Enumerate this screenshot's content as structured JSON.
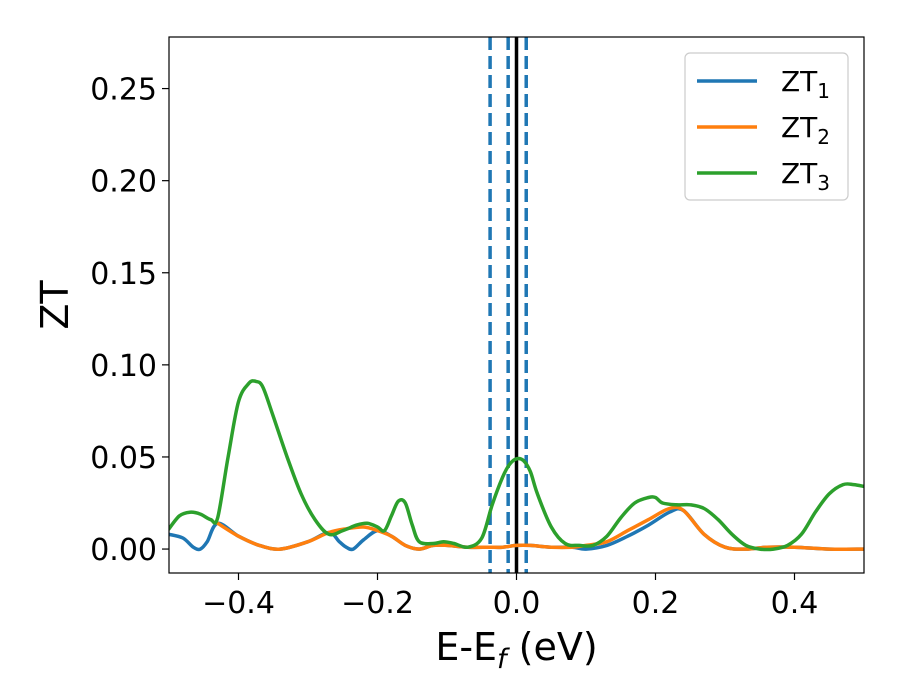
{
  "chart_data": {
    "type": "line",
    "xlabel": "E-E",
    "xlabel_sub": "f",
    "xlabel_unit": "(eV)",
    "ylabel": "ZT",
    "xlim": [
      -0.5,
      0.5
    ],
    "ylim": [
      -0.013,
      0.278
    ],
    "xticks": [
      -0.4,
      -0.2,
      0.0,
      0.2,
      0.4
    ],
    "xtick_labels": [
      "−0.4",
      "−0.2",
      "0.0",
      "0.2",
      "0.4"
    ],
    "yticks": [
      0.0,
      0.05,
      0.1,
      0.15,
      0.2,
      0.25
    ],
    "ytick_labels": [
      "0.00",
      "0.05",
      "0.10",
      "0.15",
      "0.20",
      "0.25"
    ],
    "grid": false,
    "legend_position": "top-right",
    "vlines": [
      {
        "x": -0.038,
        "style": "dashed",
        "color": "#1f77b4"
      },
      {
        "x": -0.012,
        "style": "dashed",
        "color": "#1f77b4"
      },
      {
        "x": 0.0,
        "style": "solid",
        "color": "#000000"
      },
      {
        "x": 0.014,
        "style": "dashed",
        "color": "#1f77b4"
      }
    ],
    "series": [
      {
        "name": "ZT",
        "sub": "1",
        "color": "#1f77b4",
        "x": [
          -0.5,
          -0.48,
          -0.465,
          -0.455,
          -0.445,
          -0.43,
          -0.4,
          -0.37,
          -0.34,
          -0.3,
          -0.27,
          -0.255,
          -0.245,
          -0.235,
          -0.22,
          -0.2,
          -0.18,
          -0.16,
          -0.14,
          -0.12,
          -0.1,
          -0.07,
          -0.04,
          -0.02,
          0.0,
          0.02,
          0.05,
          0.08,
          0.1,
          0.13,
          0.16,
          0.19,
          0.22,
          0.24,
          0.27,
          0.3,
          0.33,
          0.36,
          0.4,
          0.45,
          0.5
        ],
        "y": [
          0.008,
          0.006,
          0.001,
          0.0,
          0.004,
          0.014,
          0.007,
          0.002,
          0.0,
          0.004,
          0.009,
          0.004,
          0.001,
          0.0,
          0.005,
          0.01,
          0.007,
          0.002,
          0.0,
          0.002,
          0.002,
          0.001,
          0.001,
          0.001,
          0.002,
          0.002,
          0.001,
          0.001,
          0.0,
          0.002,
          0.007,
          0.013,
          0.02,
          0.021,
          0.008,
          0.001,
          0.0,
          0.001,
          0.001,
          0.0,
          0.0
        ]
      },
      {
        "name": "ZT",
        "sub": "2",
        "color": "#ff7f0e",
        "x": [
          -0.43,
          -0.4,
          -0.37,
          -0.34,
          -0.3,
          -0.27,
          -0.245,
          -0.22,
          -0.2,
          -0.18,
          -0.16,
          -0.14,
          -0.12,
          -0.1,
          -0.07,
          -0.04,
          -0.02,
          0.0,
          0.02,
          0.05,
          0.08,
          0.1,
          0.13,
          0.16,
          0.19,
          0.22,
          0.24,
          0.27,
          0.3,
          0.33,
          0.36,
          0.4,
          0.45,
          0.5
        ],
        "y": [
          0.014,
          0.007,
          0.002,
          0.0,
          0.004,
          0.009,
          0.011,
          0.012,
          0.01,
          0.007,
          0.002,
          0.0,
          0.002,
          0.002,
          0.001,
          0.001,
          0.001,
          0.002,
          0.002,
          0.001,
          0.001,
          0.002,
          0.004,
          0.01,
          0.016,
          0.022,
          0.021,
          0.008,
          0.001,
          0.0,
          0.001,
          0.001,
          0.0,
          0.0
        ]
      },
      {
        "name": "ZT",
        "sub": "3",
        "color": "#2ca02c",
        "x": [
          -0.5,
          -0.485,
          -0.47,
          -0.455,
          -0.44,
          -0.43,
          -0.415,
          -0.4,
          -0.385,
          -0.375,
          -0.365,
          -0.35,
          -0.33,
          -0.31,
          -0.29,
          -0.27,
          -0.25,
          -0.23,
          -0.215,
          -0.2,
          -0.19,
          -0.18,
          -0.17,
          -0.16,
          -0.15,
          -0.14,
          -0.12,
          -0.105,
          -0.09,
          -0.07,
          -0.05,
          -0.035,
          -0.02,
          -0.01,
          0.0,
          0.01,
          0.02,
          0.03,
          0.05,
          0.07,
          0.09,
          0.11,
          0.13,
          0.15,
          0.17,
          0.19,
          0.2,
          0.21,
          0.23,
          0.25,
          0.27,
          0.29,
          0.31,
          0.33,
          0.35,
          0.37,
          0.39,
          0.41,
          0.43,
          0.45,
          0.47,
          0.485,
          0.5
        ],
        "y": [
          0.011,
          0.018,
          0.02,
          0.019,
          0.016,
          0.017,
          0.05,
          0.08,
          0.09,
          0.091,
          0.088,
          0.072,
          0.05,
          0.03,
          0.016,
          0.008,
          0.01,
          0.013,
          0.014,
          0.012,
          0.01,
          0.018,
          0.026,
          0.025,
          0.013,
          0.004,
          0.003,
          0.004,
          0.003,
          0.001,
          0.006,
          0.024,
          0.039,
          0.046,
          0.049,
          0.048,
          0.042,
          0.03,
          0.012,
          0.003,
          0.002,
          0.002,
          0.007,
          0.017,
          0.025,
          0.028,
          0.028,
          0.025,
          0.024,
          0.024,
          0.022,
          0.016,
          0.008,
          0.002,
          0.0,
          0.0,
          0.002,
          0.008,
          0.02,
          0.03,
          0.035,
          0.035,
          0.034
        ]
      }
    ]
  }
}
